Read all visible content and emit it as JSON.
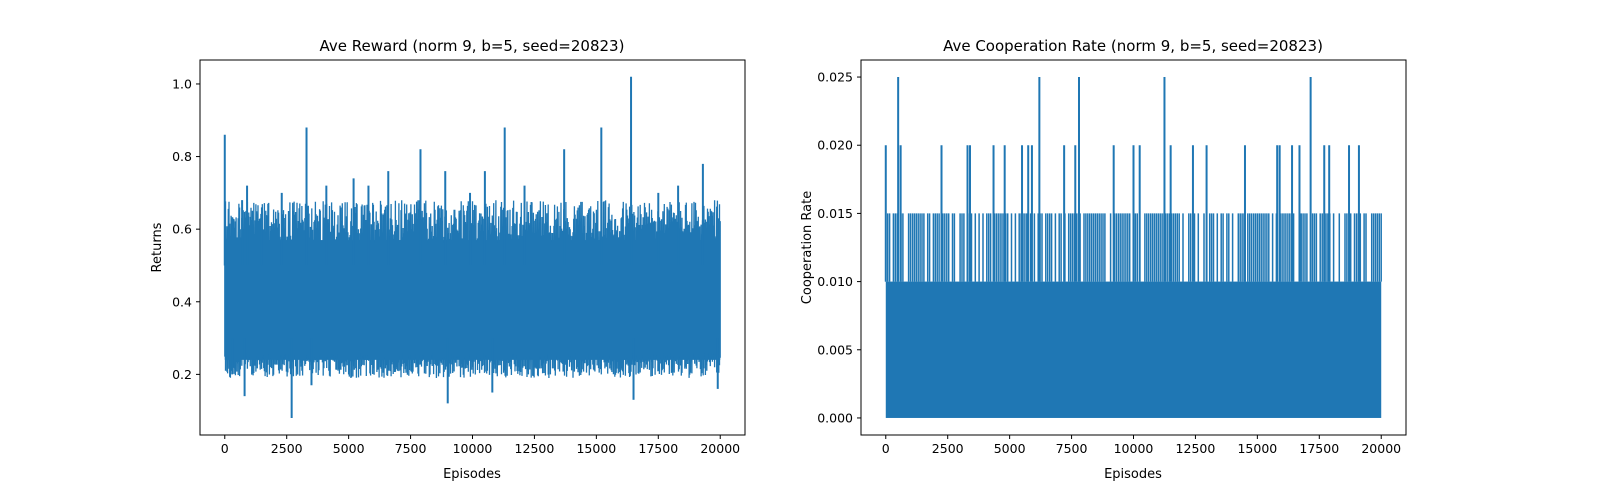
{
  "chart_data": [
    {
      "type": "line",
      "title": "Ave Reward (norm 9, b=5, seed=20823)",
      "xlabel": "Episodes",
      "ylabel": "Returns",
      "xlim": [
        -1000,
        21000
      ],
      "ylim": [
        0.033,
        1.066
      ],
      "x_ticks": [
        0,
        2500,
        5000,
        7500,
        10000,
        12500,
        15000,
        17500,
        20000
      ],
      "x_tick_labels": [
        "0",
        "2500",
        "5000",
        "7500",
        "10000",
        "12500",
        "15000",
        "17500",
        "20000"
      ],
      "y_ticks": [
        0.2,
        0.4,
        0.6,
        0.8,
        1.0
      ],
      "y_tick_labels": [
        "0.2",
        "0.4",
        "0.6",
        "0.8",
        "1.0"
      ],
      "grid": false,
      "color": "#1f77b4",
      "series": [
        {
          "n_points": 20000,
          "typical_low": 0.2,
          "typical_high": 0.6,
          "spikes": [
            {
              "x": 0,
              "y": 0.86
            },
            {
              "x": 700,
              "y": 0.68
            },
            {
              "x": 900,
              "y": 0.72
            },
            {
              "x": 1500,
              "y": 0.66
            },
            {
              "x": 2300,
              "y": 0.7
            },
            {
              "x": 3300,
              "y": 0.88
            },
            {
              "x": 4100,
              "y": 0.72
            },
            {
              "x": 5200,
              "y": 0.74
            },
            {
              "x": 5800,
              "y": 0.72
            },
            {
              "x": 6600,
              "y": 0.76
            },
            {
              "x": 7900,
              "y": 0.82
            },
            {
              "x": 8900,
              "y": 0.76
            },
            {
              "x": 9900,
              "y": 0.7
            },
            {
              "x": 10500,
              "y": 0.76
            },
            {
              "x": 11300,
              "y": 0.88
            },
            {
              "x": 12100,
              "y": 0.72
            },
            {
              "x": 13700,
              "y": 0.82
            },
            {
              "x": 15200,
              "y": 0.88
            },
            {
              "x": 16400,
              "y": 1.02
            },
            {
              "x": 17500,
              "y": 0.7
            },
            {
              "x": 18300,
              "y": 0.72
            },
            {
              "x": 19300,
              "y": 0.78
            }
          ],
          "dips": [
            {
              "x": 300,
              "y": 0.2
            },
            {
              "x": 800,
              "y": 0.14
            },
            {
              "x": 2700,
              "y": 0.08
            },
            {
              "x": 3500,
              "y": 0.17
            },
            {
              "x": 9000,
              "y": 0.12
            },
            {
              "x": 10800,
              "y": 0.15
            },
            {
              "x": 16500,
              "y": 0.13
            },
            {
              "x": 19900,
              "y": 0.16
            }
          ]
        }
      ]
    },
    {
      "type": "line",
      "title": "Ave Cooperation Rate (norm 9, b=5, seed=20823)",
      "xlabel": "Episodes",
      "ylabel": "Cooperation Rate",
      "xlim": [
        -1000,
        21000
      ],
      "ylim": [
        -0.00125,
        0.02625
      ],
      "x_ticks": [
        0,
        2500,
        5000,
        7500,
        10000,
        12500,
        15000,
        17500,
        20000
      ],
      "x_tick_labels": [
        "0",
        "2500",
        "5000",
        "7500",
        "10000",
        "12500",
        "15000",
        "17500",
        "20000"
      ],
      "y_ticks": [
        0.0,
        0.005,
        0.01,
        0.015,
        0.02,
        0.025
      ],
      "y_tick_labels": [
        "0.000",
        "0.005",
        "0.010",
        "0.015",
        "0.020",
        "0.025"
      ],
      "grid": false,
      "color": "#1f77b4",
      "series": [
        {
          "n_points": 20000,
          "levels": [
            0.0,
            0.005,
            0.01,
            0.015
          ],
          "spikes_020": [
            0,
            600,
            2250,
            3300,
            3400,
            4350,
            4800,
            5500,
            5750,
            5900,
            7200,
            7650,
            9200,
            10000,
            10250,
            11500,
            12400,
            12950,
            14500,
            15800,
            15900,
            16400,
            16700,
            17700,
            17900,
            18700,
            19100
          ],
          "spikes_025": [
            500,
            6200,
            7800,
            11250,
            17150
          ]
        }
      ]
    }
  ]
}
